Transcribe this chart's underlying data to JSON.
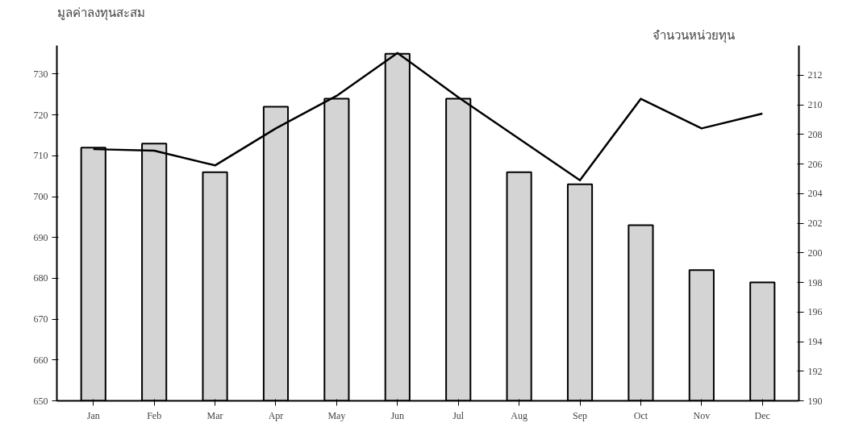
{
  "chart_data": {
    "type": "bar",
    "categories": [
      "Jan",
      "Feb",
      "Mar",
      "Apr",
      "May",
      "Jun",
      "Jul",
      "Aug",
      "Sep",
      "Oct",
      "Nov",
      "Dec"
    ],
    "ylabel": "มูลค่าลงทุนสะสม",
    "y2label": "จำนวนหน่วยทุน",
    "series": [
      {
        "color": "#d4d4d4",
        "values": [
          712,
          713,
          706,
          722,
          724,
          735,
          724,
          706,
          703,
          693,
          682,
          679
        ]
      },
      {
        "type": "line",
        "axis": "y2",
        "color": "#000000",
        "values": [
          207.0,
          206.9,
          205.9,
          208.4,
          210.6,
          213.5,
          210.5,
          207.7,
          204.9,
          210.4,
          208.4,
          209.4
        ]
      }
    ],
    "ylim": [
      650,
      737
    ],
    "yticks": [
      650,
      660,
      670,
      680,
      690,
      700,
      710,
      720,
      730
    ],
    "y2lim": [
      190,
      214
    ],
    "y2ticks": [
      190,
      192,
      194,
      196,
      198,
      200,
      202,
      204,
      206,
      208,
      210,
      212
    ],
    "grid": false
  }
}
